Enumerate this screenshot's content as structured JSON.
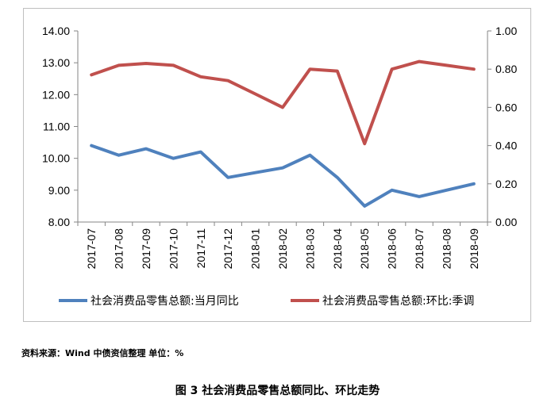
{
  "chart_data": {
    "type": "line",
    "categories": [
      "2017-07",
      "2017-08",
      "2017-09",
      "2017-10",
      "2017-11",
      "2017-12",
      "2018-01",
      "2018-02",
      "2018-03",
      "2018-04",
      "2018-05",
      "2018-06",
      "2018-07",
      "2018-08",
      "2018-09"
    ],
    "series": [
      {
        "name": "社会消费品零售总额:当月同比",
        "axis": "left",
        "color": "#4f81bd",
        "values": [
          10.4,
          10.1,
          10.3,
          10.0,
          10.2,
          9.4,
          9.55,
          9.7,
          10.1,
          9.4,
          8.5,
          9.0,
          8.8,
          9.0,
          9.2
        ]
      },
      {
        "name": "社会消费品零售总额:环比:季调",
        "axis": "right",
        "color": "#c0504d",
        "values": [
          0.77,
          0.82,
          0.83,
          0.82,
          0.76,
          0.74,
          0.67,
          0.6,
          0.8,
          0.79,
          0.41,
          0.8,
          0.84,
          0.82,
          0.8
        ]
      }
    ],
    "y_left": {
      "ylim": [
        8.0,
        14.0
      ],
      "ticks": [
        "8.00",
        "9.00",
        "10.00",
        "11.00",
        "12.00",
        "13.00",
        "14.00"
      ]
    },
    "y_right": {
      "ylim": [
        0.0,
        1.0
      ],
      "ticks": [
        "0.00",
        "0.20",
        "0.40",
        "0.60",
        "0.80",
        "1.00"
      ]
    },
    "grid": false,
    "legend_position": "bottom"
  },
  "source_note": "资料来源：Wind 中债资信整理 单位：%",
  "figure_caption": "图 3   社会消费品零售总额同比、环比走势"
}
